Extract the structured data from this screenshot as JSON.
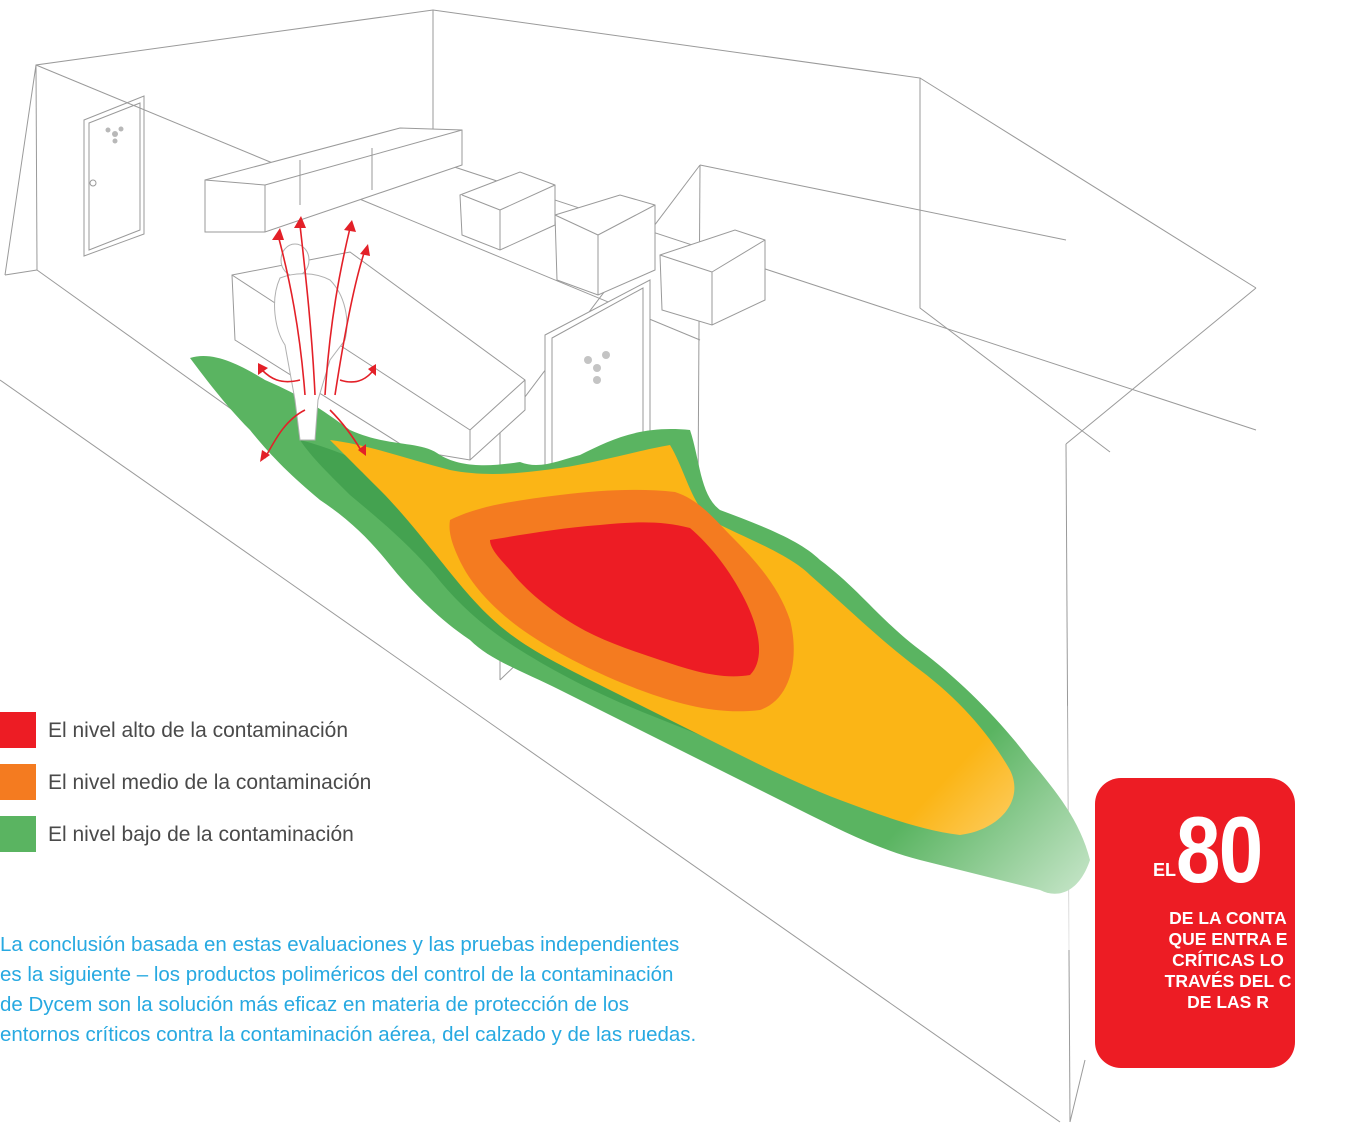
{
  "legend": {
    "items": [
      {
        "label": "El nivel alto de la contaminación",
        "color": "#ed1c24"
      },
      {
        "label": "El nivel medio de la contaminación",
        "color": "#f47b20"
      },
      {
        "label": "El nivel bajo de la contaminación",
        "color": "#5ab461"
      }
    ]
  },
  "conclusion": "La conclusión basada en estas evaluaciones y las pruebas independientes es la siguiente – los productos poliméricos del control de la contaminación de Dycem son la solución más eficaz en materia de protección de los entornos críticos contra la contaminación aérea, del calzado y de las ruedas.",
  "badge": {
    "prefix": "EL",
    "number": "80",
    "lines": [
      "DE LA CONTA",
      "QUE ENTRA E",
      "CRÍTICAS LO",
      "TRAVÉS DEL C",
      "DE LAS R"
    ],
    "color": "#ed1c24"
  },
  "colors": {
    "high": "#ed1c24",
    "medium": "#f47b20",
    "yellow": "#fbb516",
    "low": "#5ab461",
    "low_dark": "#3f9d4c",
    "arrows": "#e32028",
    "text_blue": "#27a9e1"
  },
  "icons": [
    "radiation-icon",
    "person-in-cleanroom-suit",
    "airflow-arrow-icon"
  ]
}
